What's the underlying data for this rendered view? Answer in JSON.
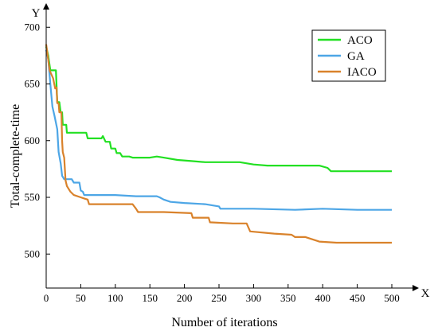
{
  "chart_data": {
    "type": "line",
    "title": "",
    "xlabel": "Number of iterations",
    "ylabel": "Total-complete-time",
    "x_axis_letter": "X",
    "y_axis_letter": "Y",
    "xlim": [
      0,
      500
    ],
    "ylim": [
      470,
      710
    ],
    "xticks": [
      0,
      50,
      100,
      150,
      200,
      250,
      300,
      350,
      400,
      450,
      500
    ],
    "yticks": [
      500,
      550,
      600,
      650,
      700
    ],
    "grid": false,
    "legend_position": "top-right",
    "series": [
      {
        "name": "ACO",
        "color": "#22e022",
        "points": [
          [
            0,
            683
          ],
          [
            3,
            675
          ],
          [
            6,
            662
          ],
          [
            14,
            662
          ],
          [
            16,
            634
          ],
          [
            19,
            634
          ],
          [
            21,
            625
          ],
          [
            23,
            625
          ],
          [
            24,
            614
          ],
          [
            29,
            614
          ],
          [
            30,
            607
          ],
          [
            58,
            607
          ],
          [
            60,
            602
          ],
          [
            80,
            602
          ],
          [
            82,
            604
          ],
          [
            86,
            599
          ],
          [
            92,
            599
          ],
          [
            94,
            593
          ],
          [
            100,
            593
          ],
          [
            102,
            589
          ],
          [
            107,
            589
          ],
          [
            110,
            586
          ],
          [
            120,
            586
          ],
          [
            125,
            585
          ],
          [
            150,
            585
          ],
          [
            160,
            586
          ],
          [
            170,
            585
          ],
          [
            190,
            583
          ],
          [
            210,
            582
          ],
          [
            230,
            581
          ],
          [
            280,
            581
          ],
          [
            300,
            579
          ],
          [
            320,
            578
          ],
          [
            370,
            578
          ],
          [
            395,
            578
          ],
          [
            407,
            576
          ],
          [
            412,
            573
          ],
          [
            440,
            573
          ],
          [
            470,
            573
          ],
          [
            500,
            573
          ]
        ]
      },
      {
        "name": "GA",
        "color": "#4da6e6",
        "points": [
          [
            0,
            680
          ],
          [
            3,
            672
          ],
          [
            6,
            650
          ],
          [
            9,
            630
          ],
          [
            12,
            622
          ],
          [
            16,
            610
          ],
          [
            18,
            590
          ],
          [
            21,
            580
          ],
          [
            23,
            569
          ],
          [
            26,
            566
          ],
          [
            37,
            566
          ],
          [
            40,
            563
          ],
          [
            48,
            563
          ],
          [
            50,
            556
          ],
          [
            53,
            555
          ],
          [
            55,
            552
          ],
          [
            60,
            552
          ],
          [
            100,
            552
          ],
          [
            130,
            551
          ],
          [
            150,
            551
          ],
          [
            160,
            551
          ],
          [
            164,
            550
          ],
          [
            170,
            548
          ],
          [
            180,
            546
          ],
          [
            200,
            545
          ],
          [
            230,
            544
          ],
          [
            250,
            542
          ],
          [
            252,
            540
          ],
          [
            290,
            540
          ],
          [
            300,
            540
          ],
          [
            360,
            539
          ],
          [
            400,
            540
          ],
          [
            450,
            539
          ],
          [
            500,
            539
          ]
        ]
      },
      {
        "name": "IACO",
        "color": "#d9822b",
        "points": [
          [
            0,
            685
          ],
          [
            5,
            662
          ],
          [
            10,
            655
          ],
          [
            13,
            646
          ],
          [
            15,
            647
          ],
          [
            16,
            633
          ],
          [
            18,
            633
          ],
          [
            19,
            625
          ],
          [
            22,
            625
          ],
          [
            23,
            600
          ],
          [
            24,
            590
          ],
          [
            26,
            585
          ],
          [
            28,
            565
          ],
          [
            30,
            560
          ],
          [
            35,
            555
          ],
          [
            40,
            552
          ],
          [
            50,
            550
          ],
          [
            55,
            549
          ],
          [
            60,
            548
          ],
          [
            62,
            544
          ],
          [
            80,
            544
          ],
          [
            100,
            544
          ],
          [
            125,
            544
          ],
          [
            130,
            540
          ],
          [
            133,
            537
          ],
          [
            170,
            537
          ],
          [
            210,
            536
          ],
          [
            212,
            532
          ],
          [
            235,
            532
          ],
          [
            237,
            528
          ],
          [
            270,
            527
          ],
          [
            290,
            527
          ],
          [
            295,
            520
          ],
          [
            330,
            518
          ],
          [
            355,
            517
          ],
          [
            360,
            515
          ],
          [
            375,
            515
          ],
          [
            395,
            511
          ],
          [
            420,
            510
          ],
          [
            430,
            510
          ],
          [
            450,
            510
          ],
          [
            500,
            510
          ]
        ]
      }
    ]
  }
}
